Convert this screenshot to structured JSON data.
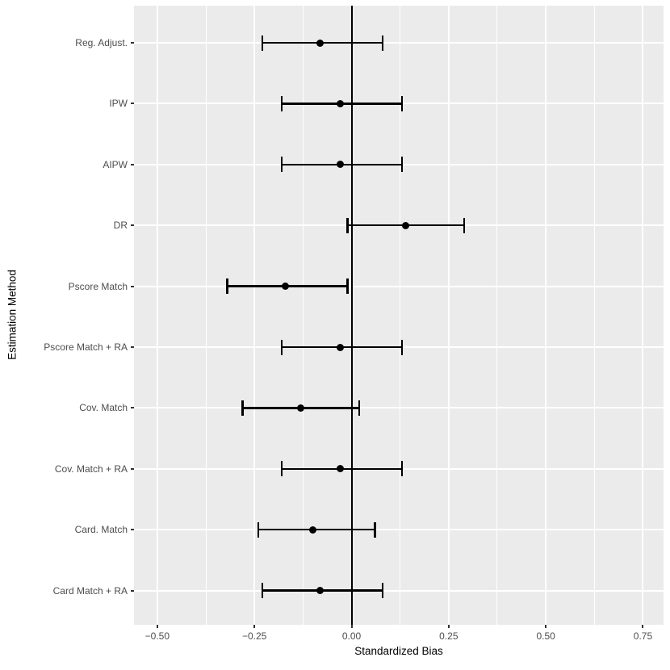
{
  "figure": {
    "x_axis_title": "Standardized Bias",
    "y_axis_title": "Estimation Method"
  },
  "colors": {
    "panel_background": "#EBEBEB",
    "gridline": "#FFFFFF",
    "geom": "#000000",
    "tick_label": "#4D4D4D",
    "axis_title": "#000000"
  },
  "chart_data": {
    "type": "scatter",
    "subtype": "pointrange-forest-plot",
    "orientation": "horizontal",
    "title": "",
    "xlabel": "Standardized Bias",
    "ylabel": "Estimation Method",
    "legend_position": "none",
    "grid": "white major and minor gridlines on grey panel",
    "xlim": [
      -0.56,
      0.8
    ],
    "x_ticks": [
      -0.5,
      -0.25,
      0.0,
      0.25,
      0.5,
      0.75
    ],
    "x_tick_labels": [
      "−0.50",
      "−0.25",
      "0.00",
      "0.25",
      "0.50",
      "0.75"
    ],
    "x_minor_gridlines": [
      -0.375,
      -0.125,
      0.125,
      0.375,
      0.625
    ],
    "reference_line_x": 0.0,
    "categories": [
      "Reg. Adjust.",
      "IPW",
      "AIPW",
      "DR",
      "Pscore Match",
      "Pscore Match + RA",
      "Cov. Match",
      "Cov. Match + RA",
      "Card. Match",
      "Card Match + RA"
    ],
    "series": [
      {
        "name": "estimate",
        "values": [
          -0.08,
          -0.03,
          -0.03,
          0.14,
          -0.17,
          -0.03,
          -0.13,
          -0.03,
          -0.1,
          -0.08
        ]
      },
      {
        "name": "ci_lower",
        "values": [
          -0.23,
          -0.18,
          -0.18,
          -0.01,
          -0.32,
          -0.18,
          -0.28,
          -0.18,
          -0.24,
          -0.23
        ]
      },
      {
        "name": "ci_upper",
        "values": [
          0.08,
          0.13,
          0.13,
          0.29,
          -0.01,
          0.13,
          0.02,
          0.13,
          0.06,
          0.08
        ]
      }
    ]
  }
}
